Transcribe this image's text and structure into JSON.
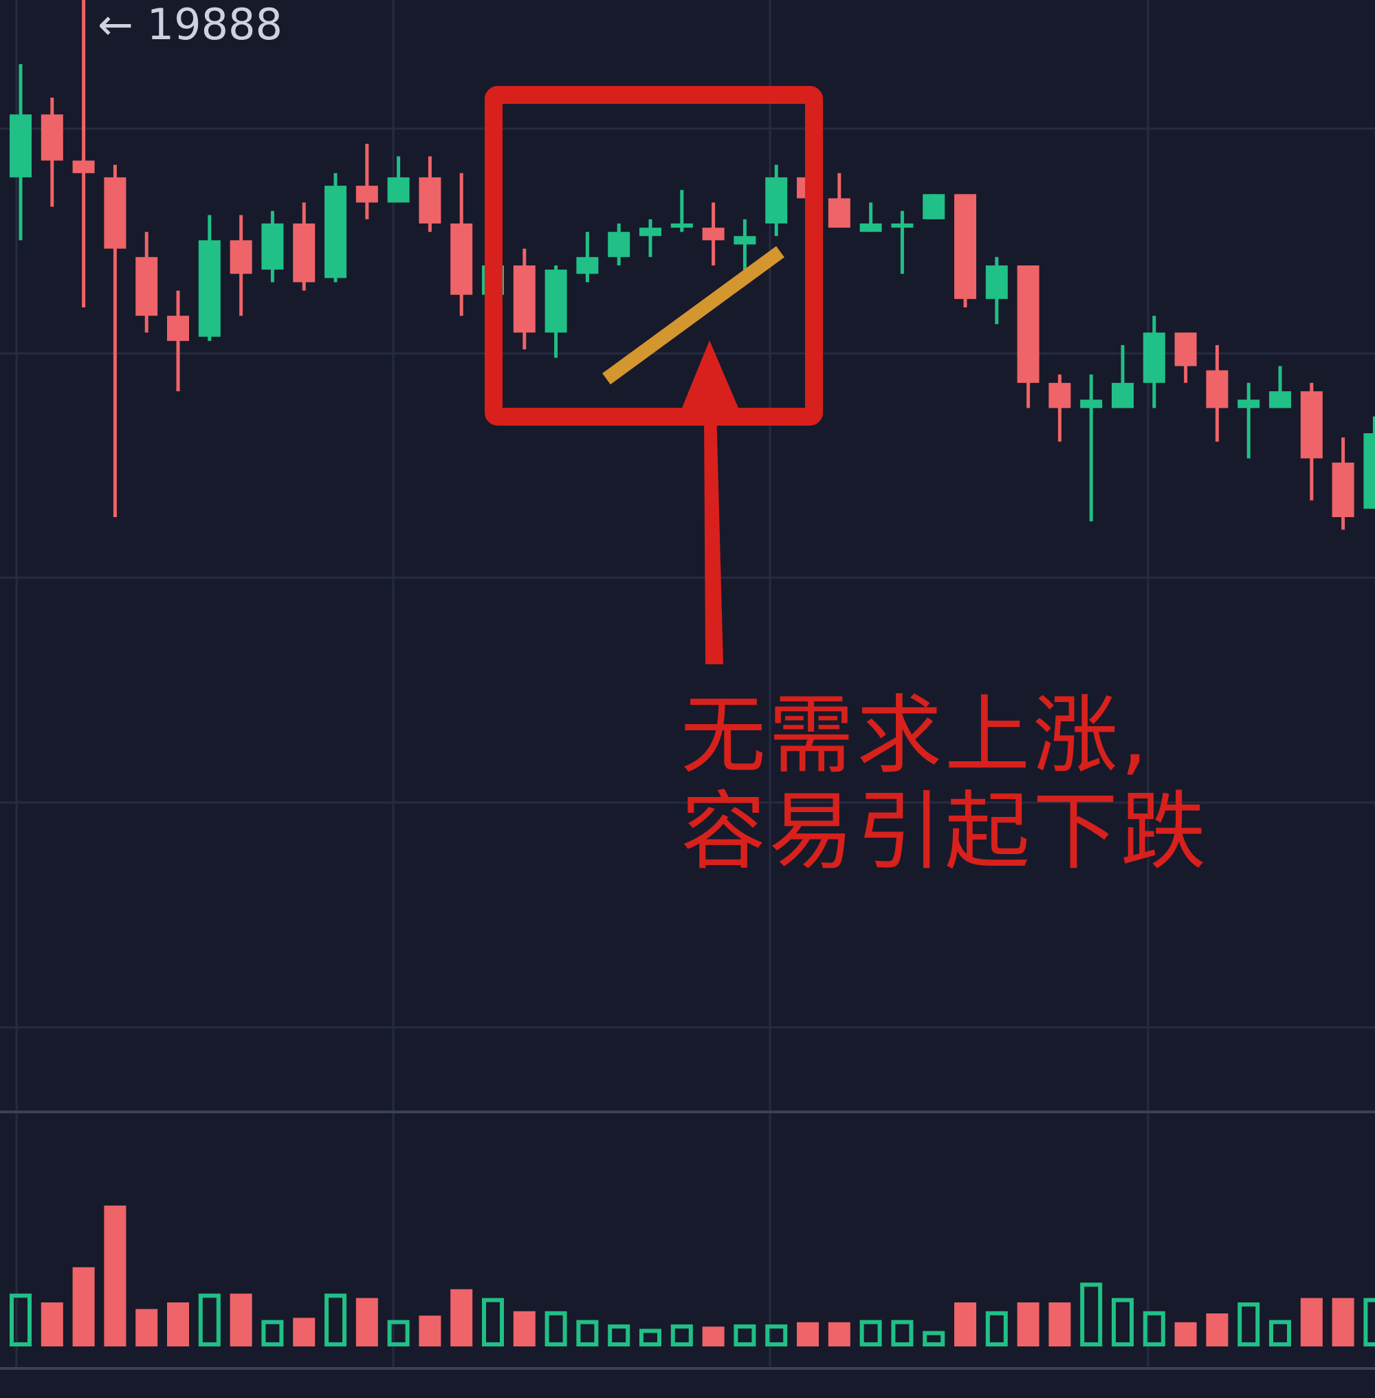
{
  "high_marker": {
    "arrow": "←",
    "value": "19888"
  },
  "annotation": {
    "line1": "无需求上涨,",
    "line2": "容易引起下跌",
    "color": "#d8211c",
    "trendline_color": "#d4962e"
  },
  "colors": {
    "background": "#171a2b",
    "grid": "#262b40",
    "up": "#20c086",
    "down": "#ee6468"
  },
  "chart_data": {
    "type": "candlestick",
    "price_high_label": 19888,
    "candles": [
      {
        "o": 5.5,
        "c": 13.0,
        "h": 19.0,
        "l": -2.0
      },
      {
        "o": 13.0,
        "c": 7.5,
        "h": 15.0,
        "l": 2.0
      },
      {
        "o": 7.5,
        "c": 6.0,
        "h": 30.0,
        "l": -10.0
      },
      {
        "o": 5.5,
        "c": -3.0,
        "h": 7.0,
        "l": -35.0
      },
      {
        "o": -4.0,
        "c": -11.0,
        "h": -1.0,
        "l": -13.0
      },
      {
        "o": -11.0,
        "c": -14.0,
        "h": -8.0,
        "l": -20.0
      },
      {
        "o": -13.5,
        "c": -2.0,
        "h": 1.0,
        "l": -14.0
      },
      {
        "o": -2.0,
        "c": -6.0,
        "h": 1.0,
        "l": -11.0
      },
      {
        "o": -5.5,
        "c": 0.0,
        "h": 1.5,
        "l": -7.0
      },
      {
        "o": 0.0,
        "c": -7.0,
        "h": 2.5,
        "l": -8.0
      },
      {
        "o": -6.5,
        "c": 4.5,
        "h": 6.0,
        "l": -7.0
      },
      {
        "o": 4.5,
        "c": 2.5,
        "h": 9.5,
        "l": 0.5
      },
      {
        "o": 2.5,
        "c": 5.5,
        "h": 8.0,
        "l": 2.5
      },
      {
        "o": 5.5,
        "c": 0.0,
        "h": 8.0,
        "l": -1.0
      },
      {
        "o": 0.0,
        "c": -8.5,
        "h": 6.0,
        "l": -11.0
      },
      {
        "o": -8.5,
        "c": -5.0,
        "h": -4.0,
        "l": -9.0
      },
      {
        "o": -5.0,
        "c": -13.0,
        "h": -3.0,
        "l": -15.0
      },
      {
        "o": -13.0,
        "c": -5.5,
        "h": -5.0,
        "l": -16.0
      },
      {
        "o": -6.0,
        "c": -4.0,
        "h": -1.0,
        "l": -7.0
      },
      {
        "o": -4.0,
        "c": -1.0,
        "h": 0.0,
        "l": -5.0
      },
      {
        "o": -1.5,
        "c": -0.5,
        "h": 0.5,
        "l": -4.0
      },
      {
        "o": -0.5,
        "c": 0.0,
        "h": 4.0,
        "l": -1.0
      },
      {
        "o": -0.5,
        "c": -2.0,
        "h": 2.5,
        "l": -5.0
      },
      {
        "o": -2.5,
        "c": -1.5,
        "h": 0.5,
        "l": -6.0
      },
      {
        "o": 0.0,
        "c": 5.5,
        "h": 7.0,
        "l": -1.5
      },
      {
        "o": 5.5,
        "c": 3.0,
        "h": 5.5,
        "l": 2.5
      },
      {
        "o": 3.0,
        "c": -0.5,
        "h": 6.0,
        "l": -0.5
      },
      {
        "o": -1.0,
        "c": 0.0,
        "h": 2.5,
        "l": -1.0
      },
      {
        "o": -0.5,
        "c": 0.0,
        "h": 1.5,
        "l": -6.0
      },
      {
        "o": 0.5,
        "c": 3.5,
        "h": 3.5,
        "l": 0.5
      },
      {
        "o": 3.5,
        "c": -9.0,
        "h": 3.5,
        "l": -10.0
      },
      {
        "o": -9.0,
        "c": -5.0,
        "h": -4.0,
        "l": -12.0
      },
      {
        "o": -5.0,
        "c": -19.0,
        "h": -5.0,
        "l": -22.0
      },
      {
        "o": -19.0,
        "c": -22.0,
        "h": -18.0,
        "l": -26.0
      },
      {
        "o": -22.0,
        "c": -21.0,
        "h": -18.0,
        "l": -35.5
      },
      {
        "o": -22.0,
        "c": -19.0,
        "h": -14.5,
        "l": -22.0
      },
      {
        "o": -19.0,
        "c": -13.0,
        "h": -11.0,
        "l": -22.0
      },
      {
        "o": -13.0,
        "c": -17.0,
        "h": -13.0,
        "l": -19.0
      },
      {
        "o": -17.5,
        "c": -22.0,
        "h": -14.5,
        "l": -26.0
      },
      {
        "o": -22.0,
        "c": -21.0,
        "h": -19.0,
        "l": -28.0
      },
      {
        "o": -22.0,
        "c": -20.0,
        "h": -17.0,
        "l": -22.0
      },
      {
        "o": -20.0,
        "c": -28.0,
        "h": -19.0,
        "l": -33.0
      },
      {
        "o": -28.5,
        "c": -35.0,
        "h": -25.5,
        "l": -36.5
      },
      {
        "o": -34.0,
        "c": -25.0,
        "h": -23.0,
        "l": -34.0
      }
    ],
    "volume": [
      {
        "v": 2.4,
        "up": true
      },
      {
        "v": 2.0,
        "up": false
      },
      {
        "v": 3.6,
        "up": false
      },
      {
        "v": 6.4,
        "up": false
      },
      {
        "v": 1.7,
        "up": false
      },
      {
        "v": 2.0,
        "up": false
      },
      {
        "v": 2.4,
        "up": true
      },
      {
        "v": 2.4,
        "up": false
      },
      {
        "v": 1.2,
        "up": true
      },
      {
        "v": 1.3,
        "up": false
      },
      {
        "v": 2.4,
        "up": true
      },
      {
        "v": 2.2,
        "up": false
      },
      {
        "v": 1.2,
        "up": true
      },
      {
        "v": 1.4,
        "up": false
      },
      {
        "v": 2.6,
        "up": false
      },
      {
        "v": 2.2,
        "up": true
      },
      {
        "v": 1.6,
        "up": false
      },
      {
        "v": 1.6,
        "up": true
      },
      {
        "v": 1.2,
        "up": true
      },
      {
        "v": 1.0,
        "up": true
      },
      {
        "v": 0.8,
        "up": true
      },
      {
        "v": 1.0,
        "up": true
      },
      {
        "v": 0.9,
        "up": false
      },
      {
        "v": 1.0,
        "up": true
      },
      {
        "v": 1.0,
        "up": true
      },
      {
        "v": 1.1,
        "up": false
      },
      {
        "v": 1.1,
        "up": false
      },
      {
        "v": 1.2,
        "up": true
      },
      {
        "v": 1.2,
        "up": true
      },
      {
        "v": 0.7,
        "up": true
      },
      {
        "v": 2.0,
        "up": false
      },
      {
        "v": 1.6,
        "up": true
      },
      {
        "v": 2.0,
        "up": false
      },
      {
        "v": 2.0,
        "up": false
      },
      {
        "v": 2.9,
        "up": true
      },
      {
        "v": 2.2,
        "up": true
      },
      {
        "v": 1.6,
        "up": true
      },
      {
        "v": 1.1,
        "up": false
      },
      {
        "v": 1.5,
        "up": false
      },
      {
        "v": 2.0,
        "up": true
      },
      {
        "v": 1.2,
        "up": true
      },
      {
        "v": 2.2,
        "up": false
      },
      {
        "v": 2.2,
        "up": false
      },
      {
        "v": 2.2,
        "up": true
      }
    ]
  }
}
